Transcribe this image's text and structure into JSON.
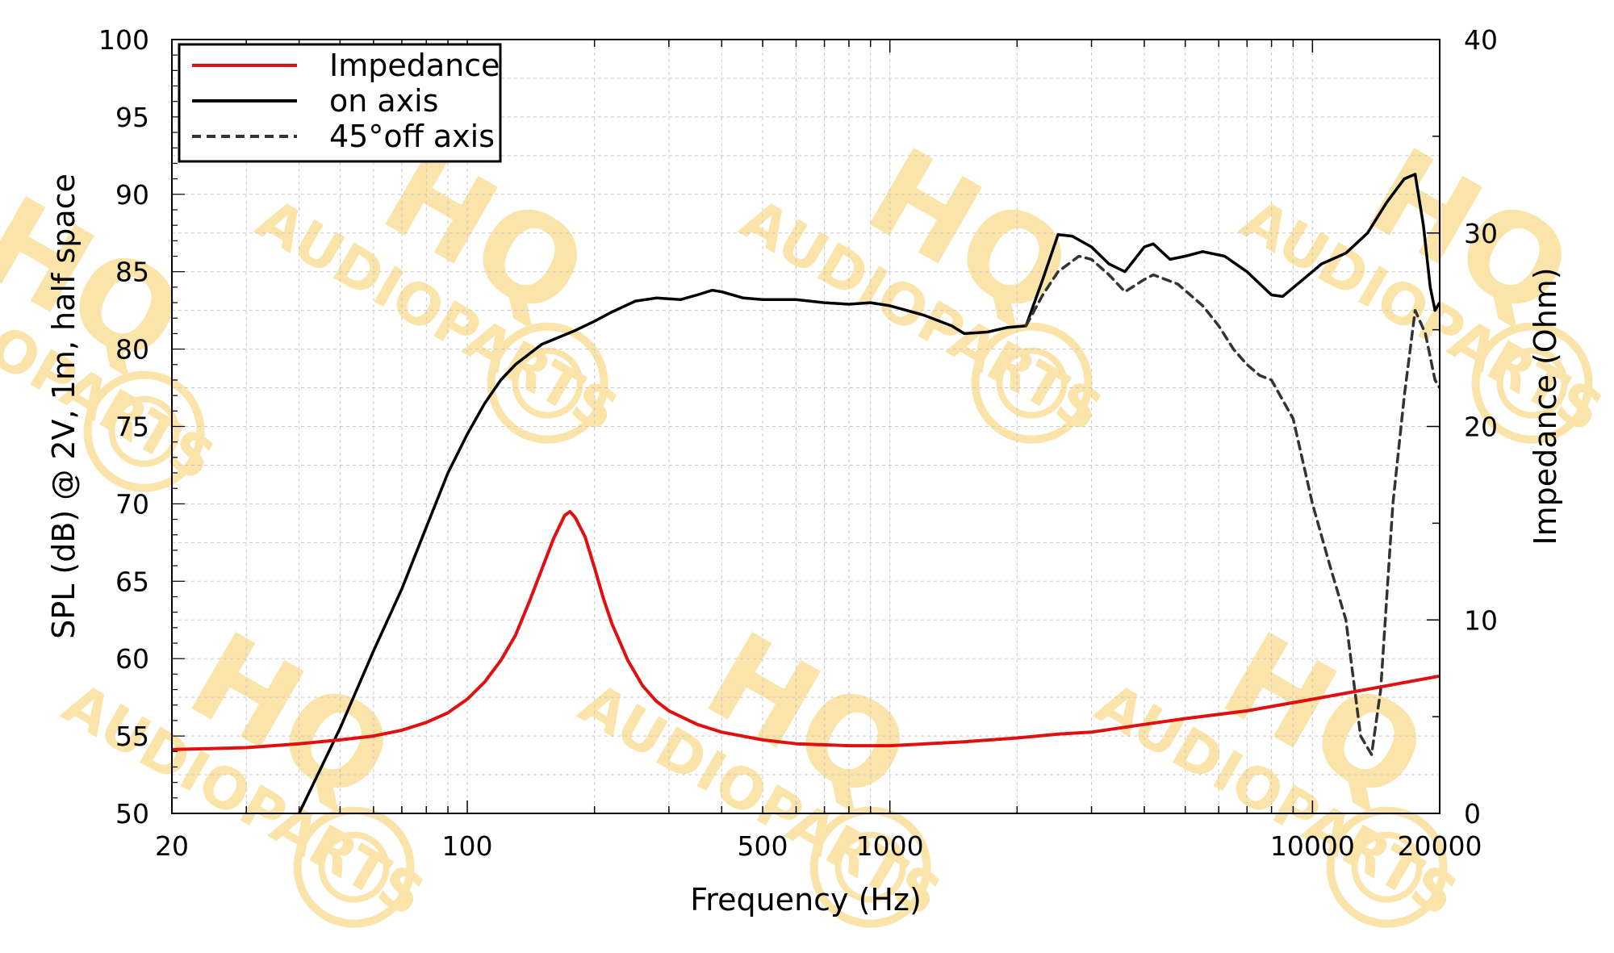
{
  "chart_data": {
    "type": "line",
    "xlabel": "Frequency (Hz)",
    "ylabel": "SPL (dB) @ 2V, 1m, half space",
    "y2label": "Impedance (Ohm)",
    "x_scale": "log",
    "xlim": [
      20,
      20000
    ],
    "ylim": [
      50,
      100
    ],
    "y2lim": [
      0,
      40
    ],
    "x_ticks": [
      {
        "value": 20,
        "label": "20"
      },
      {
        "value": 100,
        "label": "100"
      },
      {
        "value": 500,
        "label": "500"
      },
      {
        "value": 1000,
        "label": "1000"
      },
      {
        "value": 10000,
        "label": "10000"
      },
      {
        "value": 20000,
        "label": "20000"
      }
    ],
    "y_ticks": [
      {
        "value": 50,
        "label": "50"
      },
      {
        "value": 55,
        "label": "55"
      },
      {
        "value": 60,
        "label": "60"
      },
      {
        "value": 65,
        "label": "65"
      },
      {
        "value": 70,
        "label": "70"
      },
      {
        "value": 75,
        "label": "75"
      },
      {
        "value": 80,
        "label": "80"
      },
      {
        "value": 85,
        "label": "85"
      },
      {
        "value": 90,
        "label": "90"
      },
      {
        "value": 95,
        "label": "95"
      },
      {
        "value": 100,
        "label": "100"
      }
    ],
    "y2_ticks": [
      {
        "value": 0,
        "label": "0"
      },
      {
        "value": 10,
        "label": "10"
      },
      {
        "value": 20,
        "label": "20"
      },
      {
        "value": 30,
        "label": "30"
      },
      {
        "value": 40,
        "label": "40"
      }
    ],
    "grid": true,
    "legend_position": "top-left",
    "series": [
      {
        "name": "Impedance",
        "axis": "right",
        "color": "#e01010",
        "style": "solid",
        "points": [
          [
            20,
            3.3
          ],
          [
            30,
            3.4
          ],
          [
            40,
            3.6
          ],
          [
            50,
            3.8
          ],
          [
            60,
            4.0
          ],
          [
            70,
            4.3
          ],
          [
            80,
            4.7
          ],
          [
            90,
            5.2
          ],
          [
            100,
            5.9
          ],
          [
            110,
            6.8
          ],
          [
            120,
            7.9
          ],
          [
            130,
            9.2
          ],
          [
            140,
            10.9
          ],
          [
            150,
            12.6
          ],
          [
            160,
            14.2
          ],
          [
            170,
            15.4
          ],
          [
            175,
            15.6
          ],
          [
            180,
            15.3
          ],
          [
            190,
            14.3
          ],
          [
            200,
            12.7
          ],
          [
            210,
            11.1
          ],
          [
            220,
            9.8
          ],
          [
            240,
            7.9
          ],
          [
            260,
            6.6
          ],
          [
            280,
            5.8
          ],
          [
            300,
            5.3
          ],
          [
            350,
            4.6
          ],
          [
            400,
            4.2
          ],
          [
            500,
            3.8
          ],
          [
            600,
            3.6
          ],
          [
            800,
            3.5
          ],
          [
            1000,
            3.5
          ],
          [
            1500,
            3.7
          ],
          [
            2000,
            3.9
          ],
          [
            2500,
            4.1
          ],
          [
            3000,
            4.2
          ],
          [
            4000,
            4.6
          ],
          [
            5000,
            4.9
          ],
          [
            7000,
            5.3
          ],
          [
            10000,
            5.9
          ],
          [
            15000,
            6.6
          ],
          [
            20000,
            7.1
          ]
        ]
      },
      {
        "name": "on axis",
        "axis": "left",
        "color": "#000000",
        "style": "solid",
        "points": [
          [
            40,
            50
          ],
          [
            50,
            55.5
          ],
          [
            60,
            60.5
          ],
          [
            70,
            64.5
          ],
          [
            80,
            68.5
          ],
          [
            90,
            72.0
          ],
          [
            100,
            74.5
          ],
          [
            110,
            76.5
          ],
          [
            120,
            78.0
          ],
          [
            130,
            79.0
          ],
          [
            150,
            80.3
          ],
          [
            180,
            81.2
          ],
          [
            200,
            81.8
          ],
          [
            220,
            82.4
          ],
          [
            250,
            83.1
          ],
          [
            280,
            83.3
          ],
          [
            320,
            83.2
          ],
          [
            350,
            83.5
          ],
          [
            380,
            83.8
          ],
          [
            400,
            83.7
          ],
          [
            450,
            83.3
          ],
          [
            500,
            83.2
          ],
          [
            600,
            83.2
          ],
          [
            700,
            83.0
          ],
          [
            800,
            82.9
          ],
          [
            900,
            83.0
          ],
          [
            1000,
            82.8
          ],
          [
            1200,
            82.2
          ],
          [
            1400,
            81.5
          ],
          [
            1500,
            81.0
          ],
          [
            1700,
            81.1
          ],
          [
            1900,
            81.4
          ],
          [
            2100,
            81.5
          ],
          [
            2300,
            84.5
          ],
          [
            2500,
            87.4
          ],
          [
            2700,
            87.3
          ],
          [
            3000,
            86.6
          ],
          [
            3300,
            85.5
          ],
          [
            3600,
            85.0
          ],
          [
            4000,
            86.6
          ],
          [
            4200,
            86.8
          ],
          [
            4600,
            85.8
          ],
          [
            5000,
            86.0
          ],
          [
            5500,
            86.3
          ],
          [
            6200,
            86.0
          ],
          [
            7000,
            85.0
          ],
          [
            8000,
            83.5
          ],
          [
            8500,
            83.4
          ],
          [
            9500,
            84.5
          ],
          [
            10500,
            85.5
          ],
          [
            12000,
            86.2
          ],
          [
            13500,
            87.5
          ],
          [
            15000,
            89.5
          ],
          [
            16500,
            91.0
          ],
          [
            17500,
            91.3
          ],
          [
            18300,
            88.0
          ],
          [
            19000,
            84.0
          ],
          [
            19500,
            82.5
          ],
          [
            20000,
            83.0
          ]
        ]
      },
      {
        "name": "45°off axis",
        "axis": "left",
        "color": "#333333",
        "style": "dashed",
        "points": [
          [
            2100,
            81.5
          ],
          [
            2300,
            83.5
          ],
          [
            2500,
            85.0
          ],
          [
            2800,
            86.0
          ],
          [
            3000,
            85.8
          ],
          [
            3300,
            84.8
          ],
          [
            3600,
            83.7
          ],
          [
            4000,
            84.5
          ],
          [
            4200,
            84.8
          ],
          [
            4800,
            84.2
          ],
          [
            5500,
            82.8
          ],
          [
            6000,
            81.5
          ],
          [
            6500,
            80.0
          ],
          [
            7000,
            79.0
          ],
          [
            7500,
            78.3
          ],
          [
            8000,
            78.0
          ],
          [
            9000,
            75.5
          ],
          [
            10000,
            70.0
          ],
          [
            11000,
            66.0
          ],
          [
            12000,
            62.5
          ],
          [
            13000,
            55.0
          ],
          [
            13800,
            53.8
          ],
          [
            14500,
            58.0
          ],
          [
            15500,
            70.0
          ],
          [
            16500,
            77.0
          ],
          [
            17500,
            82.5
          ],
          [
            18500,
            81.0
          ],
          [
            19500,
            78.0
          ],
          [
            20000,
            77.5
          ]
        ]
      }
    ]
  },
  "watermark": {
    "brand": "HQ",
    "subtitle": "AUDIOPARTS",
    "color": "#f7c544"
  }
}
